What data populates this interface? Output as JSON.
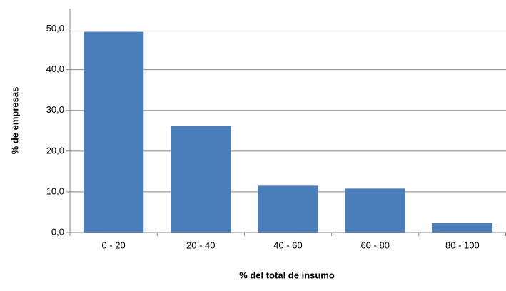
{
  "chart_data": {
    "type": "bar",
    "x_label": "% del total de insumo",
    "y_label": "% de empresas",
    "categories": [
      "0 - 20",
      "20 - 40",
      "40 - 60",
      "60 - 80",
      "80 - 100"
    ],
    "values": [
      49.3,
      26.2,
      11.5,
      10.8,
      2.3
    ],
    "color": "#4a7ebb",
    "ylim": [
      0,
      55
    ],
    "yticks": [
      {
        "value": 0,
        "label": "0,0"
      },
      {
        "value": 10,
        "label": "10,0"
      },
      {
        "value": 20,
        "label": "20,0"
      },
      {
        "value": 30,
        "label": "30,0"
      },
      {
        "value": 40,
        "label": "40,0"
      },
      {
        "value": 50,
        "label": "50,0"
      }
    ],
    "grid": true
  }
}
